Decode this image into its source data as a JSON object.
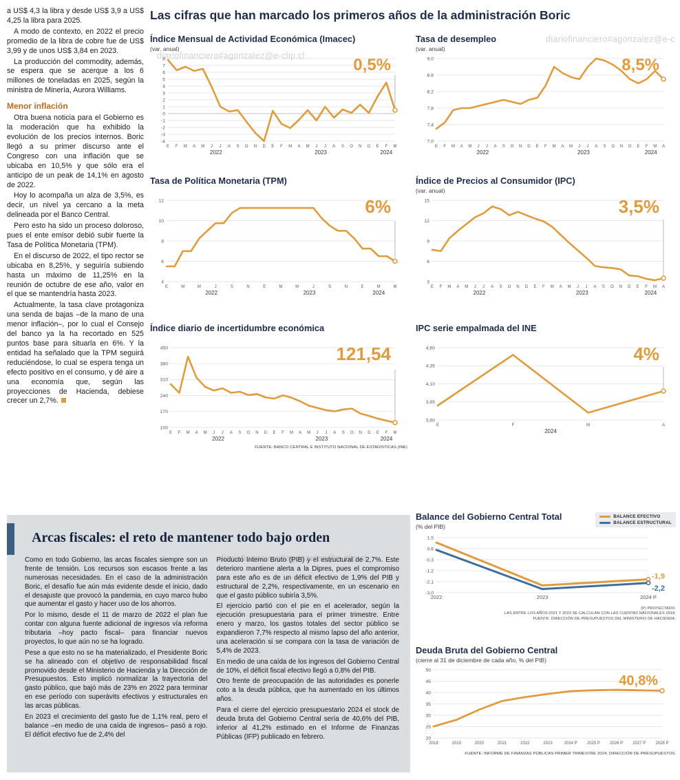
{
  "watermark": "diariofinanciero#agonzalez@e-clip.cl",
  "main_title": "Las cifras que han marcado los primeros años de la administración Boric",
  "left_column": {
    "paragraphs_1": [
      "a US$ 4,3 la libra y desde US$ 3,9 a US$ 4,25 la libra para 2025.",
      "A modo de contexto, en 2022 el precio promedio de la libra de cobre fue de US$ 3,99 y de unos US$ 3,84 en 2023.",
      "La producción del commodity, además, se espera que se acerque a los 6 millones de toneladas en 2025, según la ministra de Minería, Aurora Williams."
    ],
    "heading": "Menor inflación",
    "paragraphs_2": [
      "Otra buena noticia para el Gobierno es la moderación que ha exhibido la evolución de los precios internos. Boric llegó a su primer discurso ante el Congreso con una inflación que se ubicaba en 10,5% y que sólo era el anticipo de un peak de 14,1% en agosto de 2022.",
      "Hoy lo acompaña un alza de 3,5%, es decir, un nivel ya cercano a la meta delineada por el Banco Central.",
      "Pero esto ha sido un proceso doloroso, pues el ente emisor debió subir fuerte la Tasa de Política Monetaria (TPM).",
      "En el discurso de 2022, el tipo rector se ubicaba en 8,25%, y seguiría subiendo hasta un máximo de 11,25% en la reunión de octubre de ese año, valor en el que se mantendría hasta 2023.",
      "Actualmente, la tasa clave protagoniza una senda de bajas –de la mano de una menor inflación–, por lo cual el Consejo del banco ya la ha recortado en 525 puntos base para situarla en 6%. Y la entidad ha señalado que la TPM seguirá reduciéndose, lo cual se espera tenga un efecto positivo en el consumo, y dé aire a una economía que, según las proyecciones de Hacienda, debiese crecer un 2,7%."
    ]
  },
  "sources": {
    "top_charts": "FUENTE: BANCO CENTRAL E INSTITUTO NACIONAL DE ESTADÍSTICAS (INE)"
  },
  "fiscal_section": {
    "title": "Arcas fiscales: el reto de mantener todo bajo orden",
    "col1": [
      "Como en todo Gobierno, las arcas fiscales siempre son un frente de tensión. Los recursos son escasos frente a las numerosas necesidades. En el caso de la administración Boric, el desafío fue aún más evidente desde el inicio, dado el desajuste que provocó la pandemia, en cuyo marco hubo que aumentar el gasto y hacer uso de los ahorros.",
      "Por lo mismo, desde el 11 de marzo de 2022 el plan fue contar con alguna fuente adicional de ingresos vía reforma tributaria –hoy pacto fiscal– para financiar nuevos proyectos, lo que aún no se ha logrado.",
      "Pese a que esto no se ha materializado, el Presidente Boric se ha alineado con el objetivo de responsabilidad fiscal promovido desde el Ministerio de Hacienda y la Dirección de Presupuestos. Esto implicó normalizar la trayectoria del gasto público, que bajó más de 23% en 2022 para terminar en ese período con superávits efectivos y estructurales en las arcas públicas.",
      "En 2023 el crecimiento del gasto fue de 1,1% real, pero el balance –en medio de una caída de ingresos– pasó a rojo. El déficit efectivo fue de 2,4% del"
    ],
    "col2": [
      "Producto Interno Bruto (PIB) y el estructural de 2,7%. Este deterioro mantiene alerta a la Dipres, pues el compromiso para este año es de un déficit efectivo de 1,9% del PIB y estructural de 2,2%, respectivamente, en un escenario en que el gasto público subiría 3,5%.",
      "El ejercicio partió con el pie en el acelerador, según la ejecución presupuestaria para el primer trimestre. Entre enero y marzo, los gastos totales del sector público se expandieron 7,7% respecto al mismo lapso del año anterior, una aceleración si se compara con la tasa de variación de 5,4% de 2023.",
      "En medio de una caída de los ingresos del Gobierno Central de 10%, el déficit fiscal efectivo llegó a 0,8% del PIB.",
      "Otro frente de preocupación de las autoridades es ponerle coto a la deuda pública, que ha aumentado en los últimos años.",
      "Para el cierre del ejercicio presupuestario 2024 el stock de deuda bruta del Gobierno Central sería de 40,6% del PIB, inferior al 41,2% estimado en el Informe de Finanzas Públicas (IFP) publicado en febrero."
    ],
    "balance_notes": [
      "(P) PROYECTADO.",
      "LAS ENTRE LOS AÑOS 2021 Y 2023 SE CALCULAN CON LAS CUENTAS NACIONALES 2018.",
      "FUENTE: DIRECCIÓN DE PRESUPUESTOS DEL MINISTERIO DE HACIENDA."
    ],
    "deuda_source": "FUENTE: INFORME DE FINANZAS PÚBLICAS PRIMER TRIMESTRE 2024, DIRECCIÓN DE PRESUPUESTOS."
  },
  "colors": {
    "accent_orange": "#E09B3D",
    "accent_blue": "#3E6E9E",
    "title_navy": "#1d2b4c",
    "section_bg": "#dbdee1",
    "section_bar": "#3d5e83"
  },
  "chart_data": [
    {
      "id": "imacec",
      "type": "line",
      "title": "Índice Mensual de Actividad Económica (Imacec)",
      "subtitle": "(var. anual)",
      "ylim": [
        -4,
        8
      ],
      "yticks": [
        {
          "v": 8,
          "t": "8"
        },
        {
          "v": 7,
          "t": "7"
        },
        {
          "v": 6,
          "t": "6"
        },
        {
          "v": 5,
          "t": "5"
        },
        {
          "v": 4,
          "t": "4"
        },
        {
          "v": 3,
          "t": "3"
        },
        {
          "v": 2,
          "t": "2"
        },
        {
          "v": 1,
          "t": "1"
        },
        {
          "v": 0,
          "t": "0"
        },
        {
          "v": -1,
          "t": "-1"
        },
        {
          "v": -2,
          "t": "-2"
        },
        {
          "v": -3,
          "t": "-3"
        },
        {
          "v": -4,
          "t": "-4"
        }
      ],
      "x_labels": [
        "E",
        "F",
        "M",
        "A",
        "M",
        "J",
        "J",
        "A",
        "S",
        "O",
        "N",
        "D",
        "E",
        "F",
        "M",
        "A",
        "M",
        "J",
        "J",
        "A",
        "S",
        "O",
        "N",
        "D",
        "E",
        "F",
        "M"
      ],
      "x_groups": [
        {
          "label": "2022",
          "start": 0,
          "end": 11
        },
        {
          "label": "2023",
          "start": 12,
          "end": 23
        },
        {
          "label": "2024",
          "start": 24,
          "end": 26
        }
      ],
      "series": [
        {
          "name": "Imacec var. anual",
          "color": "#E09B3D",
          "values": [
            7.8,
            6.3,
            6.8,
            6.2,
            6.5,
            3.9,
            1.0,
            0.3,
            0.5,
            -1.2,
            -2.8,
            -4.0,
            0.4,
            -1.5,
            -2.1,
            -0.9,
            0.5,
            -1.0,
            1.0,
            -0.6,
            0.6,
            0.1,
            1.3,
            0.1,
            2.5,
            4.5,
            0.5
          ]
        }
      ],
      "callout": "0,5%",
      "callout_size": 24,
      "dropline": true,
      "dropline_top": 24,
      "margins": {
        "l": 26,
        "r": 18,
        "t": 8,
        "b": 24
      }
    },
    {
      "id": "desempleo",
      "type": "line",
      "title": "Tasa de desempleo",
      "subtitle": "(var. anual)",
      "ylim": [
        7.0,
        9.0
      ],
      "yticks": [
        {
          "v": 9.0,
          "t": "9,0"
        },
        {
          "v": 8.6,
          "t": "8,6"
        },
        {
          "v": 8.2,
          "t": "8,2"
        },
        {
          "v": 7.8,
          "t": "7,8"
        },
        {
          "v": 7.4,
          "t": "7,4"
        },
        {
          "v": 7.0,
          "t": "7,0"
        }
      ],
      "x_labels": [
        "E",
        "F",
        "M",
        "A",
        "M",
        "J",
        "J",
        "A",
        "S",
        "O",
        "N",
        "D",
        "E",
        "F",
        "M",
        "A",
        "M",
        "J",
        "J",
        "A",
        "S",
        "O",
        "N",
        "D",
        "E",
        "F",
        "M",
        "A"
      ],
      "x_groups": [
        {
          "label": "2022",
          "start": 0,
          "end": 11
        },
        {
          "label": "2023",
          "start": 12,
          "end": 23
        },
        {
          "label": "2024",
          "start": 24,
          "end": 27
        }
      ],
      "series": [
        {
          "name": "Tasa de desempleo",
          "color": "#E09B3D",
          "values": [
            7.3,
            7.45,
            7.75,
            7.8,
            7.8,
            7.85,
            7.9,
            7.95,
            8.0,
            7.95,
            7.9,
            8.0,
            8.05,
            8.35,
            8.8,
            8.65,
            8.55,
            8.5,
            8.8,
            9.0,
            8.95,
            8.85,
            8.7,
            8.5,
            8.4,
            8.5,
            8.7,
            8.5
          ]
        }
      ],
      "callout": "8,5%",
      "callout_size": 24,
      "dropline": true,
      "dropline_top": 30,
      "margins": {
        "l": 30,
        "r": 18,
        "t": 8,
        "b": 24
      }
    },
    {
      "id": "tpm",
      "type": "line",
      "title": "Tasa de Política Monetaria (TPM)",
      "subtitle": "",
      "ylim": [
        4,
        12
      ],
      "yticks": [
        {
          "v": 12,
          "t": "12"
        },
        {
          "v": 10,
          "t": "10"
        },
        {
          "v": 8,
          "t": "8"
        },
        {
          "v": 6,
          "t": "6"
        },
        {
          "v": 4,
          "t": "4"
        }
      ],
      "x_labels": [
        "E",
        "",
        "M",
        "",
        "M",
        "",
        "J",
        "",
        "S",
        "",
        "N",
        "",
        "E",
        "",
        "M",
        "",
        "M",
        "",
        "J",
        "",
        "S",
        "",
        "N",
        "",
        "E",
        "",
        "M",
        "",
        "M"
      ],
      "x_groups": [
        {
          "label": "2022",
          "start": 0,
          "end": 11
        },
        {
          "label": "2023",
          "start": 12,
          "end": 23
        },
        {
          "label": "2024",
          "start": 24,
          "end": 28
        }
      ],
      "series": [
        {
          "name": "TPM",
          "color": "#E09B3D",
          "values": [
            5.5,
            5.5,
            7.0,
            7.0,
            8.25,
            9.0,
            9.75,
            9.75,
            10.75,
            11.25,
            11.25,
            11.25,
            11.25,
            11.25,
            11.25,
            11.25,
            11.25,
            11.25,
            11.25,
            10.25,
            9.5,
            9.0,
            9.0,
            8.25,
            7.25,
            7.25,
            6.5,
            6.5,
            6.0
          ]
        }
      ],
      "callout": "6%",
      "callout_size": 26,
      "dropline": true,
      "dropline_top": 30,
      "margins": {
        "l": 24,
        "r": 18,
        "t": 8,
        "b": 24
      }
    },
    {
      "id": "ipc",
      "type": "line",
      "title": "Índice de Precios al Consumidor (IPC)",
      "subtitle": "(var. anual)",
      "ylim": [
        3,
        15
      ],
      "yticks": [
        {
          "v": 15,
          "t": "15"
        },
        {
          "v": 12,
          "t": "12"
        },
        {
          "v": 9,
          "t": "9"
        },
        {
          "v": 6,
          "t": "6"
        },
        {
          "v": 3,
          "t": "3"
        }
      ],
      "x_labels": [
        "E",
        "F",
        "M",
        "A",
        "M",
        "J",
        "J",
        "A",
        "S",
        "O",
        "N",
        "D",
        "E",
        "F",
        "M",
        "A",
        "M",
        "J",
        "J",
        "A",
        "S",
        "O",
        "N",
        "D",
        "E",
        "F",
        "M",
        "A"
      ],
      "x_groups": [
        {
          "label": "2022",
          "start": 0,
          "end": 11
        },
        {
          "label": "2023",
          "start": 12,
          "end": 23
        },
        {
          "label": "2024",
          "start": 24,
          "end": 27
        }
      ],
      "series": [
        {
          "name": "IPC var. anual",
          "color": "#E09B3D",
          "values": [
            7.7,
            7.5,
            9.4,
            10.5,
            11.5,
            12.5,
            13.1,
            14.1,
            13.7,
            12.8,
            13.3,
            12.8,
            12.3,
            11.9,
            11.1,
            9.9,
            8.7,
            7.6,
            6.5,
            5.3,
            5.1,
            5.0,
            4.8,
            3.9,
            3.8,
            3.4,
            3.2,
            3.5
          ]
        }
      ],
      "callout": "3,5%",
      "callout_size": 26,
      "dropline": true,
      "dropline_top": 28,
      "margins": {
        "l": 24,
        "r": 18,
        "t": 8,
        "b": 24
      }
    },
    {
      "id": "incertidumbre",
      "type": "line",
      "title": "Índice diario de incertidumbre económica",
      "subtitle": "",
      "ylim": [
        100,
        450
      ],
      "yticks": [
        {
          "v": 450,
          "t": "450"
        },
        {
          "v": 380,
          "t": "380"
        },
        {
          "v": 310,
          "t": "310"
        },
        {
          "v": 240,
          "t": "240"
        },
        {
          "v": 170,
          "t": "170"
        },
        {
          "v": 100,
          "t": "100"
        }
      ],
      "x_labels": [
        "E",
        "F",
        "M",
        "A",
        "M",
        "J",
        "J",
        "A",
        "S",
        "O",
        "N",
        "D",
        "E",
        "F",
        "M",
        "A",
        "M",
        "J",
        "J",
        "A",
        "S",
        "O",
        "N",
        "D",
        "E",
        "F",
        "M"
      ],
      "x_groups": [
        {
          "label": "2022",
          "start": 0,
          "end": 11
        },
        {
          "label": "2023",
          "start": 12,
          "end": 23
        },
        {
          "label": "2024",
          "start": 24,
          "end": 26
        }
      ],
      "series": [
        {
          "name": "Incertidumbre económica",
          "color": "#E09B3D",
          "values": [
            290,
            252,
            410,
            318,
            278,
            262,
            272,
            252,
            257,
            242,
            247,
            232,
            227,
            241,
            231,
            215,
            196,
            186,
            176,
            171,
            179,
            183,
            161,
            151,
            139,
            130,
            121.54
          ]
        }
      ],
      "callout": "121,54",
      "callout_size": 26,
      "dropline": true,
      "dropline_top": 32,
      "margins": {
        "l": 30,
        "r": 18,
        "t": 8,
        "b": 24
      }
    },
    {
      "id": "ipc-ine",
      "type": "line",
      "title": "IPC serie empalmada del INE",
      "subtitle": "",
      "ylim": [
        3.6,
        4.6
      ],
      "yticks": [
        {
          "v": 4.6,
          "t": "4,60"
        },
        {
          "v": 4.35,
          "t": "4,35"
        },
        {
          "v": 4.1,
          "t": "4,10"
        },
        {
          "v": 3.85,
          "t": "3,85"
        },
        {
          "v": 3.6,
          "t": "3,60"
        }
      ],
      "x_labels": [
        "E",
        "F",
        "M",
        "A"
      ],
      "x_groups": [
        {
          "label": "2024",
          "start": 0,
          "end": 3
        }
      ],
      "series": [
        {
          "name": "IPC serie empalmada",
          "color": "#E09B3D",
          "values": [
            3.8,
            4.5,
            3.7,
            4.0
          ]
        }
      ],
      "callout": "4%",
      "callout_size": 26,
      "dropline": true,
      "dropline_top": 28,
      "margins": {
        "l": 32,
        "r": 18,
        "t": 8,
        "b": 22
      }
    },
    {
      "id": "balance",
      "type": "line",
      "title": "Balance del Gobierno Central Total",
      "subtitle": "(% del PIB)",
      "ylim": [
        -3.0,
        1.5
      ],
      "yticks": [
        {
          "v": 1.5,
          "t": "1,5"
        },
        {
          "v": 0.6,
          "t": "0,6"
        },
        {
          "v": -0.3,
          "t": "-0,3"
        },
        {
          "v": -1.2,
          "t": "-1,2"
        },
        {
          "v": -2.1,
          "t": "-2,1"
        },
        {
          "v": -3.0,
          "t": "-3,0"
        }
      ],
      "x_labels": [
        "2022",
        "2023",
        "2024 P"
      ],
      "x_label_size": 7.5,
      "legend_position": "top-right",
      "series": [
        {
          "name": "BALANCE EFECTIVO",
          "color": "#E09B3D",
          "width": 3,
          "marker_r": 2.6,
          "values": [
            1.1,
            -2.4,
            -1.9
          ],
          "end_label": "-1,9",
          "end_label_dy": -1
        },
        {
          "name": "BALANCE ESTRUCTURAL",
          "color": "#3E6E9E",
          "width": 3,
          "marker_r": 2.6,
          "values": [
            0.5,
            -2.7,
            -2.2
          ],
          "end_label": "-2,2",
          "end_label_dy": 11
        }
      ],
      "margins": {
        "l": 30,
        "r": 40,
        "t": 10,
        "b": 18
      }
    },
    {
      "id": "deuda",
      "type": "line",
      "title": "Deuda Bruta del Gobierno Central",
      "subtitle": "(cierre al 31 de diciembre de cada año, % del PIB)",
      "ylim": [
        20,
        50
      ],
      "yticks": [
        {
          "v": 50,
          "t": "50"
        },
        {
          "v": 45,
          "t": "45"
        },
        {
          "v": 40,
          "t": "40"
        },
        {
          "v": 35,
          "t": "35"
        },
        {
          "v": 30,
          "t": "30"
        },
        {
          "v": 25,
          "t": "25"
        },
        {
          "v": 20,
          "t": "20"
        }
      ],
      "x_labels": [
        "2018",
        "2019",
        "2020",
        "2021",
        "2022",
        "2023",
        "2024 P",
        "2025 P",
        "2026 P",
        "2027 P",
        "2028 P"
      ],
      "x_label_size": 6,
      "series": [
        {
          "name": "Deuda bruta",
          "color": "#E09B3D",
          "width": 2.8,
          "values": [
            25.1,
            28.0,
            32.5,
            36.3,
            38.0,
            39.4,
            40.6,
            41.0,
            41.2,
            41.0,
            40.8
          ]
        }
      ],
      "callout": "40,8%",
      "callout_size": 20,
      "callout_dy": 22,
      "margins": {
        "l": 26,
        "r": 20,
        "t": 8,
        "b": 18
      }
    }
  ]
}
